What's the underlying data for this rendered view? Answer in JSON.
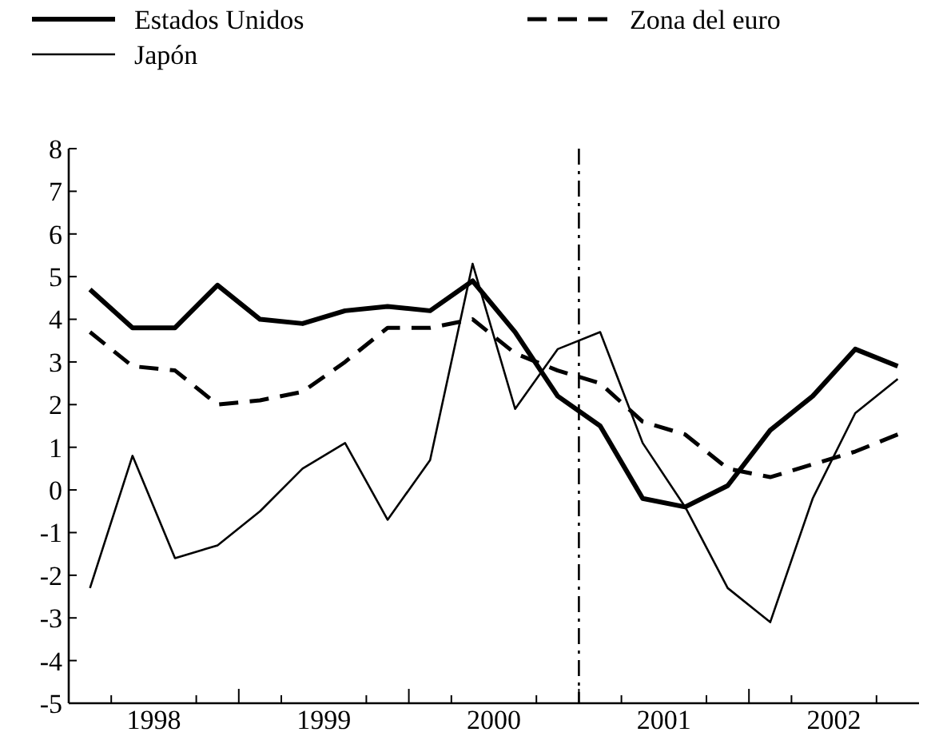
{
  "chart_data": {
    "type": "line",
    "x": [
      1998.125,
      1998.375,
      1998.625,
      1998.875,
      1999.125,
      1999.375,
      1999.625,
      1999.875,
      2000.125,
      2000.375,
      2000.625,
      2000.875,
      2001.125,
      2001.375,
      2001.625,
      2001.875,
      2002.125,
      2002.375,
      2002.625,
      2002.875
    ],
    "series": [
      {
        "name": "Estados Unidos",
        "color": "#000000",
        "line_style": "solid",
        "values": [
          4.7,
          3.8,
          3.8,
          4.8,
          4.0,
          3.9,
          4.2,
          4.3,
          4.2,
          4.9,
          3.7,
          2.2,
          1.5,
          -0.2,
          -0.4,
          0.1,
          1.4,
          2.2,
          3.3,
          2.9
        ]
      },
      {
        "name": "Zona del euro",
        "color": "#000000",
        "line_style": "dashed",
        "values": [
          3.7,
          2.9,
          2.8,
          2.0,
          2.1,
          2.3,
          3.0,
          3.8,
          3.8,
          4.0,
          3.2,
          2.8,
          2.5,
          1.6,
          1.3,
          0.5,
          0.3,
          0.6,
          0.9,
          1.3
        ]
      },
      {
        "name": "Japón",
        "color": "#000000",
        "line_style": "solid",
        "values": [
          -2.3,
          0.8,
          -1.6,
          -1.3,
          -0.5,
          0.5,
          1.1,
          -0.7,
          0.7,
          5.3,
          1.9,
          3.3,
          3.7,
          1.1,
          -0.4,
          -2.3,
          -3.1,
          -0.2,
          1.8,
          2.6
        ]
      }
    ],
    "xlim": [
      1998,
      2003
    ],
    "xticks": [
      {
        "value": 1998,
        "label": null
      },
      {
        "value": 1998.25,
        "label": null
      },
      {
        "value": 1998.5,
        "label": "1998"
      },
      {
        "value": 1998.75,
        "label": null
      },
      {
        "value": 1999,
        "label": null
      },
      {
        "value": 1999.25,
        "label": null
      },
      {
        "value": 1999.5,
        "label": "1999"
      },
      {
        "value": 1999.75,
        "label": null
      },
      {
        "value": 2000,
        "label": null
      },
      {
        "value": 2000.25,
        "label": null
      },
      {
        "value": 2000.5,
        "label": "2000"
      },
      {
        "value": 2000.75,
        "label": null
      },
      {
        "value": 2001,
        "label": null
      },
      {
        "value": 2001.25,
        "label": null
      },
      {
        "value": 2001.5,
        "label": "2001"
      },
      {
        "value": 2001.75,
        "label": null
      },
      {
        "value": 2002,
        "label": null
      },
      {
        "value": 2002.25,
        "label": null
      },
      {
        "value": 2002.5,
        "label": "2002"
      },
      {
        "value": 2002.75,
        "label": null
      }
    ],
    "ylim": [
      -5,
      8
    ],
    "yticks": [
      -5,
      -4,
      -3,
      -2,
      -1,
      0,
      1,
      2,
      3,
      4,
      5,
      6,
      7,
      8
    ],
    "ref_lines": [
      {
        "axis": "x",
        "value": 2001,
        "line_style": "dashdot",
        "color": "#000000"
      }
    ],
    "grid": false,
    "legend": "top",
    "marker": "none"
  }
}
